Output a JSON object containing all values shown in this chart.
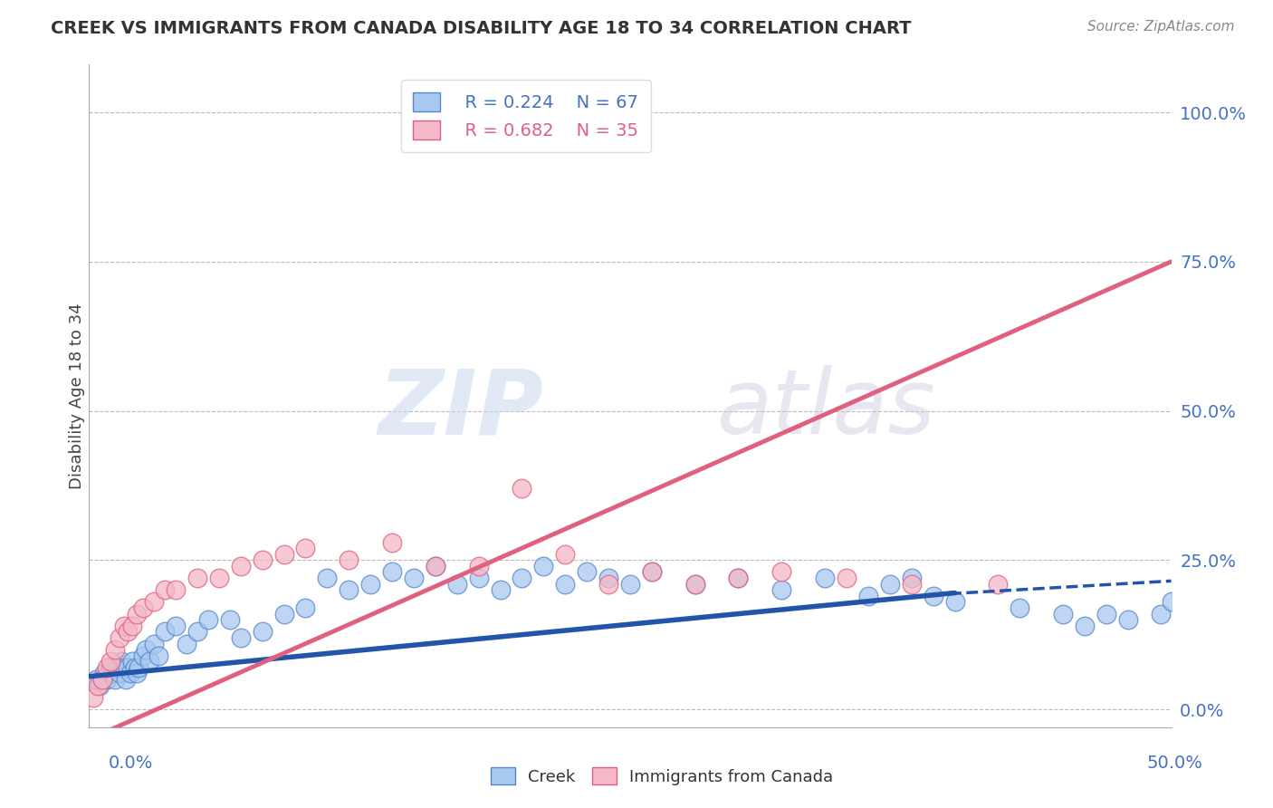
{
  "title": "CREEK VS IMMIGRANTS FROM CANADA DISABILITY AGE 18 TO 34 CORRELATION CHART",
  "source": "Source: ZipAtlas.com",
  "ylabel": "Disability Age 18 to 34",
  "yticks_labels": [
    "0.0%",
    "25.0%",
    "50.0%",
    "75.0%",
    "100.0%"
  ],
  "ytick_vals": [
    0,
    25,
    50,
    75,
    100
  ],
  "xlim": [
    0,
    50
  ],
  "ylim": [
    -3,
    108
  ],
  "legend_blue_label": "Creek",
  "legend_pink_label": "Immigrants from Canada",
  "R_blue": "0.224",
  "N_blue": "67",
  "R_pink": "0.682",
  "N_pink": "35",
  "blue_color": "#A8C8F0",
  "pink_color": "#F5B8C8",
  "blue_edge_color": "#5588CC",
  "pink_edge_color": "#E06080",
  "blue_line_color": "#2255AA",
  "pink_line_color": "#E06080",
  "watermark_zip": "ZIP",
  "watermark_atlas": "atlas",
  "blue_scatter_x": [
    0.3,
    0.5,
    0.6,
    0.7,
    0.8,
    0.9,
    1.0,
    1.1,
    1.2,
    1.3,
    1.4,
    1.5,
    1.6,
    1.7,
    1.8,
    1.9,
    2.0,
    2.1,
    2.2,
    2.3,
    2.5,
    2.6,
    2.8,
    3.0,
    3.2,
    3.5,
    4.0,
    4.5,
    5.0,
    5.5,
    6.5,
    7.0,
    8.0,
    9.0,
    10.0,
    11.0,
    12.0,
    13.0,
    14.0,
    15.0,
    16.0,
    17.0,
    18.0,
    19.0,
    20.0,
    21.0,
    22.0,
    23.0,
    24.0,
    25.0,
    26.0,
    28.0,
    30.0,
    32.0,
    34.0,
    36.0,
    37.0,
    38.0,
    39.0,
    40.0,
    43.0,
    45.0,
    46.0,
    47.0,
    48.0,
    49.5,
    50.0
  ],
  "blue_scatter_y": [
    5,
    4,
    5,
    6,
    5,
    6,
    7,
    6,
    5,
    7,
    6,
    8,
    7,
    5,
    7,
    6,
    8,
    7,
    6,
    7,
    9,
    10,
    8,
    11,
    9,
    13,
    14,
    11,
    13,
    15,
    15,
    12,
    13,
    16,
    17,
    22,
    20,
    21,
    23,
    22,
    24,
    21,
    22,
    20,
    22,
    24,
    21,
    23,
    22,
    21,
    23,
    21,
    22,
    20,
    22,
    19,
    21,
    22,
    19,
    18,
    17,
    16,
    14,
    16,
    15,
    16,
    18
  ],
  "pink_scatter_x": [
    0.2,
    0.4,
    0.6,
    0.8,
    1.0,
    1.2,
    1.4,
    1.6,
    1.8,
    2.0,
    2.2,
    2.5,
    3.0,
    3.5,
    4.0,
    5.0,
    6.0,
    7.0,
    8.0,
    9.0,
    10.0,
    12.0,
    14.0,
    16.0,
    18.0,
    20.0,
    22.0,
    24.0,
    26.0,
    28.0,
    30.0,
    32.0,
    35.0,
    38.0,
    42.0
  ],
  "pink_scatter_y": [
    2,
    4,
    5,
    7,
    8,
    10,
    12,
    14,
    13,
    14,
    16,
    17,
    18,
    20,
    20,
    22,
    22,
    24,
    25,
    26,
    27,
    25,
    28,
    24,
    24,
    37,
    26,
    21,
    23,
    21,
    22,
    23,
    22,
    21,
    21
  ],
  "blue_line_x0": 0,
  "blue_line_y0": 5.5,
  "blue_line_x1": 40,
  "blue_line_y1": 19.5,
  "blue_dash_x0": 39,
  "blue_dash_y0": 19.2,
  "blue_dash_x1": 50,
  "blue_dash_y1": 21.5,
  "pink_line_x0": 0,
  "pink_line_y0": -5,
  "pink_line_x1": 50,
  "pink_line_y1": 75
}
